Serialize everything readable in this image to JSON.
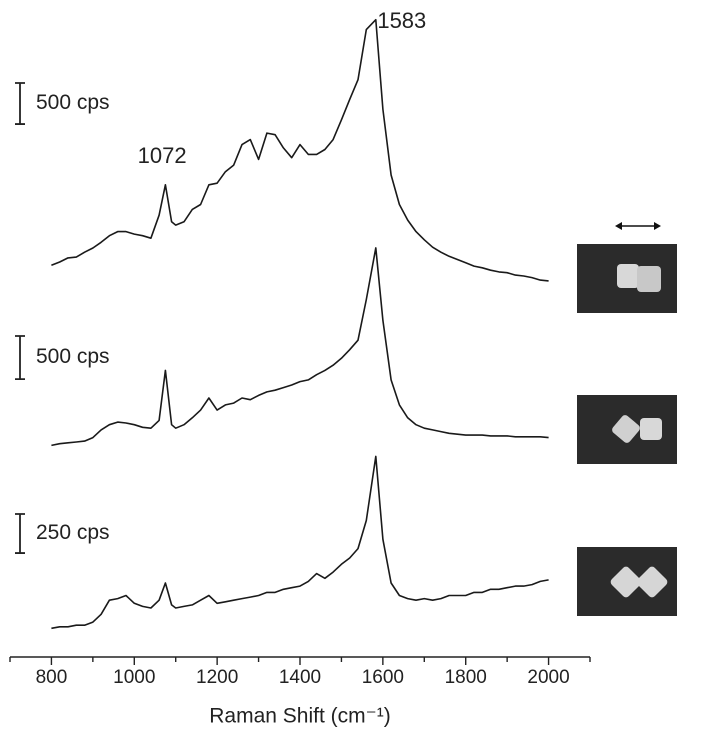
{
  "chart_data": {
    "type": "line",
    "xlabel": "Raman Shift (cm⁻¹)",
    "xlim": [
      700,
      2100
    ],
    "xticks": [
      800,
      1000,
      1200,
      1400,
      1600,
      1800,
      2000
    ],
    "xminorticks": [
      700,
      900,
      1100,
      1300,
      1500,
      1700,
      1900,
      2100
    ],
    "x": [
      800,
      820,
      840,
      860,
      880,
      900,
      920,
      940,
      960,
      980,
      1000,
      1020,
      1040,
      1060,
      1075,
      1090,
      1100,
      1120,
      1140,
      1160,
      1180,
      1200,
      1220,
      1240,
      1260,
      1280,
      1300,
      1320,
      1340,
      1360,
      1380,
      1400,
      1420,
      1440,
      1460,
      1480,
      1500,
      1520,
      1540,
      1560,
      1583,
      1600,
      1620,
      1640,
      1660,
      1680,
      1700,
      1720,
      1740,
      1760,
      1780,
      1800,
      1820,
      1840,
      1860,
      1880,
      1900,
      1920,
      1940,
      1960,
      1980,
      2000
    ],
    "annotations": [
      {
        "label": "1072",
        "x": 1072
      },
      {
        "label": "1583",
        "x": 1583
      }
    ],
    "series": [
      {
        "color": "#1a1a1a",
        "ylim": [
          0,
          3300
        ],
        "scale_bar": {
          "value": 500,
          "label": "500 cps"
        },
        "values": [
          240,
          280,
          330,
          340,
          400,
          450,
          520,
          600,
          650,
          650,
          620,
          600,
          570,
          850,
          1220,
          770,
          730,
          770,
          920,
          980,
          1220,
          1240,
          1380,
          1460,
          1710,
          1770,
          1530,
          1850,
          1830,
          1670,
          1550,
          1710,
          1590,
          1590,
          1650,
          1770,
          2010,
          2260,
          2500,
          3110,
          3230,
          2140,
          1340,
          980,
          790,
          650,
          550,
          460,
          400,
          350,
          310,
          270,
          230,
          210,
          180,
          160,
          150,
          120,
          110,
          90,
          60,
          50
        ]
      },
      {
        "color": "#1a1a1a",
        "ylim": [
          0,
          2400
        ],
        "scale_bar": {
          "value": 500,
          "label": "500 cps"
        },
        "values": [
          30,
          50,
          60,
          70,
          80,
          120,
          210,
          270,
          300,
          290,
          270,
          240,
          230,
          320,
          900,
          270,
          230,
          270,
          350,
          440,
          580,
          440,
          500,
          520,
          580,
          560,
          610,
          650,
          670,
          700,
          730,
          770,
          790,
          850,
          900,
          960,
          1040,
          1140,
          1250,
          1720,
          2320,
          1480,
          790,
          500,
          350,
          270,
          230,
          210,
          190,
          170,
          160,
          150,
          150,
          150,
          140,
          140,
          140,
          130,
          130,
          130,
          130,
          120
        ]
      },
      {
        "color": "#1a1a1a",
        "ylim": [
          0,
          1200
        ],
        "scale_bar": {
          "value": 250,
          "label": "250 cps"
        },
        "values": [
          30,
          40,
          40,
          50,
          50,
          70,
          120,
          210,
          220,
          240,
          190,
          170,
          160,
          210,
          320,
          180,
          160,
          170,
          180,
          210,
          240,
          190,
          200,
          210,
          220,
          230,
          240,
          260,
          260,
          280,
          290,
          300,
          330,
          380,
          350,
          390,
          440,
          480,
          540,
          720,
          1130,
          600,
          320,
          240,
          220,
          210,
          220,
          210,
          220,
          240,
          240,
          240,
          260,
          260,
          280,
          280,
          290,
          300,
          300,
          310,
          330,
          340
        ]
      }
    ]
  }
}
